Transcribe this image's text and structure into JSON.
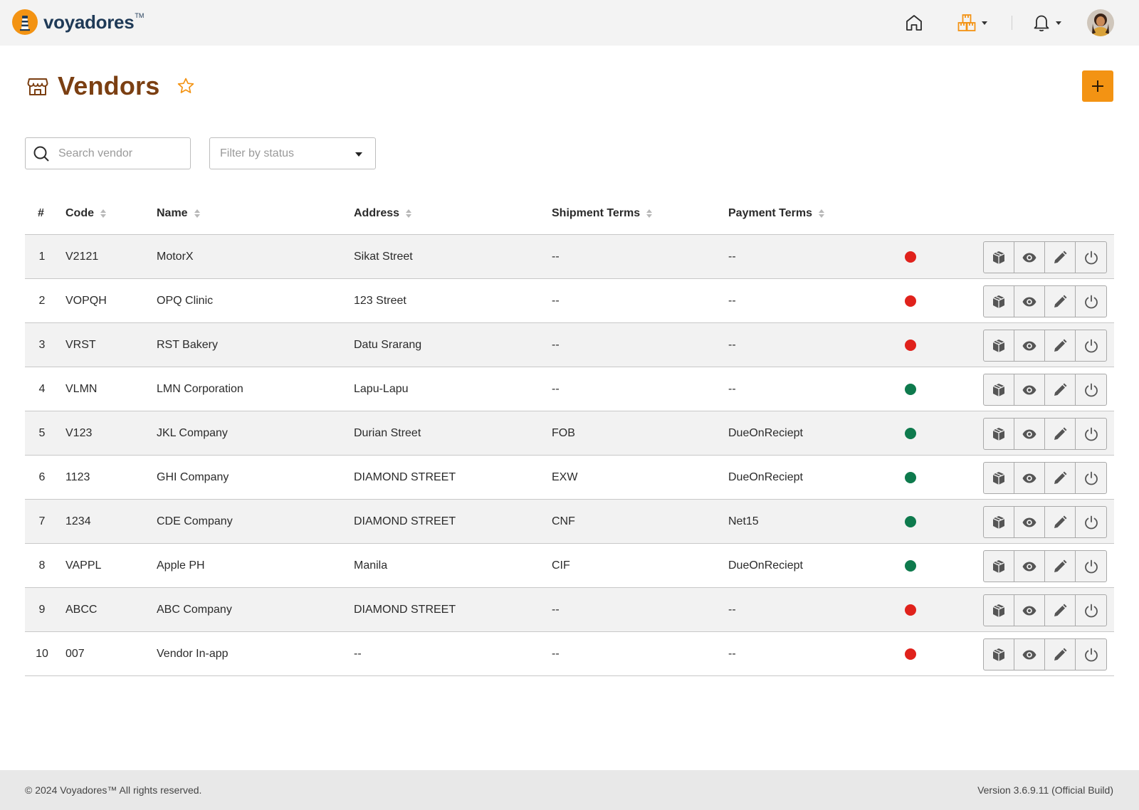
{
  "brand": {
    "name": "voyadores",
    "tm": "TM"
  },
  "nav": {
    "home_icon": "home-icon",
    "store_icon": "warehouse-boxes-icon",
    "bell_icon": "bell-icon",
    "accent": "#f39313"
  },
  "page": {
    "title": "Vendors",
    "title_color": "#7b3f12",
    "icon": "storefront-icon"
  },
  "filters": {
    "search_placeholder": "Search vendor",
    "status_placeholder": "Filter by status"
  },
  "table": {
    "headers": {
      "num": "#",
      "code": "Code",
      "name": "Name",
      "address": "Address",
      "shipment": "Shipment Terms",
      "payment": "Payment Terms"
    },
    "rows": [
      {
        "num": "1",
        "code": "V2121",
        "name": "MotorX",
        "address": "Sikat Street",
        "shipment": "--",
        "payment": "--",
        "status": "inactive"
      },
      {
        "num": "2",
        "code": "VOPQH",
        "name": "OPQ Clinic",
        "address": "123 Street",
        "shipment": "--",
        "payment": "--",
        "status": "inactive"
      },
      {
        "num": "3",
        "code": "VRST",
        "name": "RST Bakery",
        "address": "Datu Srarang",
        "shipment": "--",
        "payment": "--",
        "status": "inactive"
      },
      {
        "num": "4",
        "code": "VLMN",
        "name": "LMN Corporation",
        "address": "Lapu-Lapu",
        "shipment": "--",
        "payment": "--",
        "status": "active"
      },
      {
        "num": "5",
        "code": "V123",
        "name": "JKL Company",
        "address": "Durian Street",
        "shipment": "FOB",
        "payment": "DueOnReciept",
        "status": "active"
      },
      {
        "num": "6",
        "code": "1123",
        "name": "GHI Company",
        "address": "DIAMOND STREET",
        "shipment": "EXW",
        "payment": "DueOnReciept",
        "status": "active"
      },
      {
        "num": "7",
        "code": "1234",
        "name": "CDE Company",
        "address": "DIAMOND STREET",
        "shipment": "CNF",
        "payment": "Net15",
        "status": "active"
      },
      {
        "num": "8",
        "code": "VAPPL",
        "name": "Apple PH",
        "address": "Manila",
        "shipment": "CIF",
        "payment": "DueOnReciept",
        "status": "active"
      },
      {
        "num": "9",
        "code": "ABCC",
        "name": "ABC Company",
        "address": "DIAMOND STREET",
        "shipment": "--",
        "payment": "--",
        "status": "inactive"
      },
      {
        "num": "10",
        "code": "007",
        "name": "Vendor In-app",
        "address": "--",
        "shipment": "--",
        "payment": "--",
        "status": "inactive"
      }
    ],
    "status_colors": {
      "active": "#0e7a4d",
      "inactive": "#e0221c"
    },
    "action_icons": [
      "package-icon",
      "eye-icon",
      "pencil-icon",
      "power-icon"
    ]
  },
  "footer": {
    "copyright": "© 2024 Voyadores™ All rights reserved.",
    "version": "Version 3.6.9.11 (Official Build)"
  }
}
